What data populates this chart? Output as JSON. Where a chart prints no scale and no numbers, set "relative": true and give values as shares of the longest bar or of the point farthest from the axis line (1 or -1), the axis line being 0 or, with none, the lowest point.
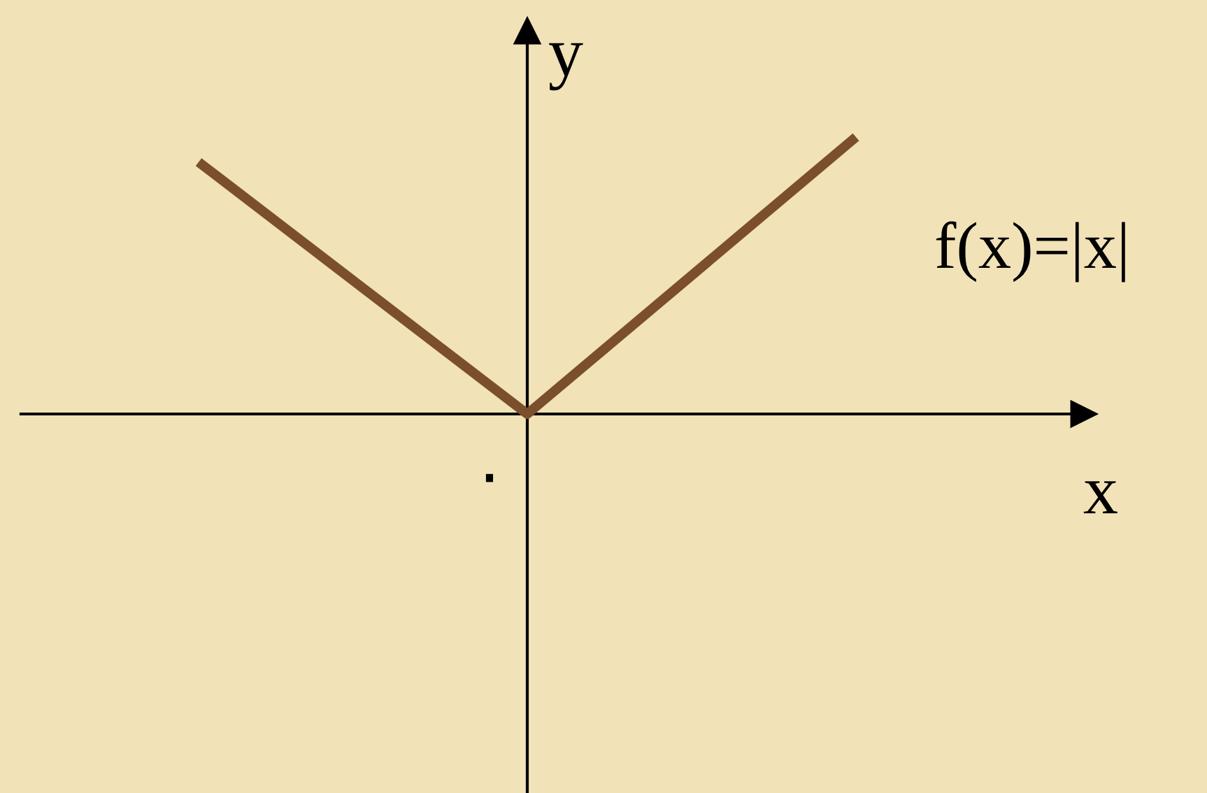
{
  "chart_data": {
    "type": "line",
    "relative": true,
    "categories": [
      null,
      null,
      null
    ],
    "series": [
      {
        "color": "#7b4f2c",
        "values": [
          0.91,
          0,
          1
        ]
      }
    ],
    "xlabel": "x",
    "ylabel": "y",
    "annotations": [
      "f(x)=|x|",
      "٠"
    ],
    "marker": "none",
    "line_style": "solid"
  }
}
